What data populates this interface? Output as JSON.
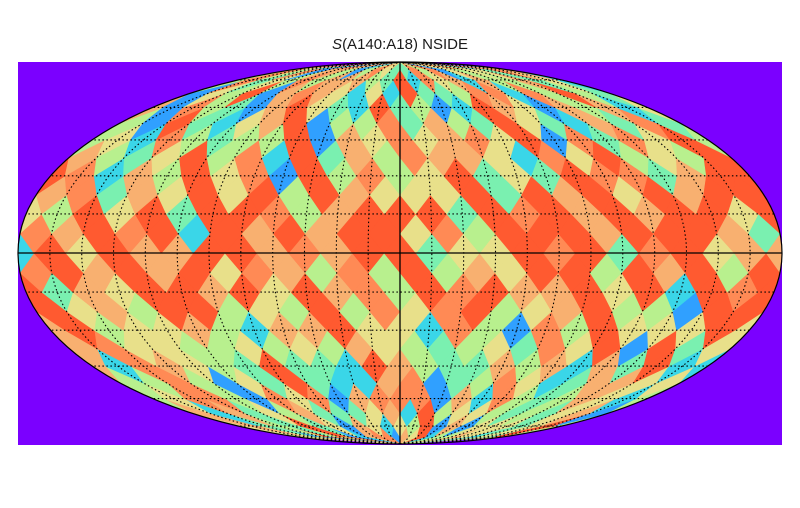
{
  "title": {
    "symbol": "S",
    "text": "(A140:A18) NSIDE"
  },
  "chart_data": {
    "type": "heatmap",
    "projection": "mollweide",
    "title": "S(A140:A18) NSIDE",
    "background_color": "#7b00ff",
    "colormap": [
      "#30a0ff",
      "#3ad6e8",
      "#7af0b0",
      "#b8f08e",
      "#e8e08a",
      "#f8b070",
      "#ff8a55",
      "#ff5a30"
    ],
    "value_range": [
      0,
      1
    ],
    "graticule": {
      "parallels_deg": [
        -75,
        -60,
        -45,
        -30,
        -15,
        0,
        15,
        30,
        45,
        60,
        75
      ],
      "meridians_deg": [
        -165,
        -150,
        -135,
        -120,
        -105,
        -90,
        -75,
        -60,
        -45,
        -30,
        -15,
        0,
        15,
        30,
        45,
        60,
        75,
        90,
        105,
        120,
        135,
        150,
        165
      ],
      "style": "dotted",
      "highlight_axes": [
        "equator",
        "central-meridian"
      ]
    },
    "grid": true
  }
}
